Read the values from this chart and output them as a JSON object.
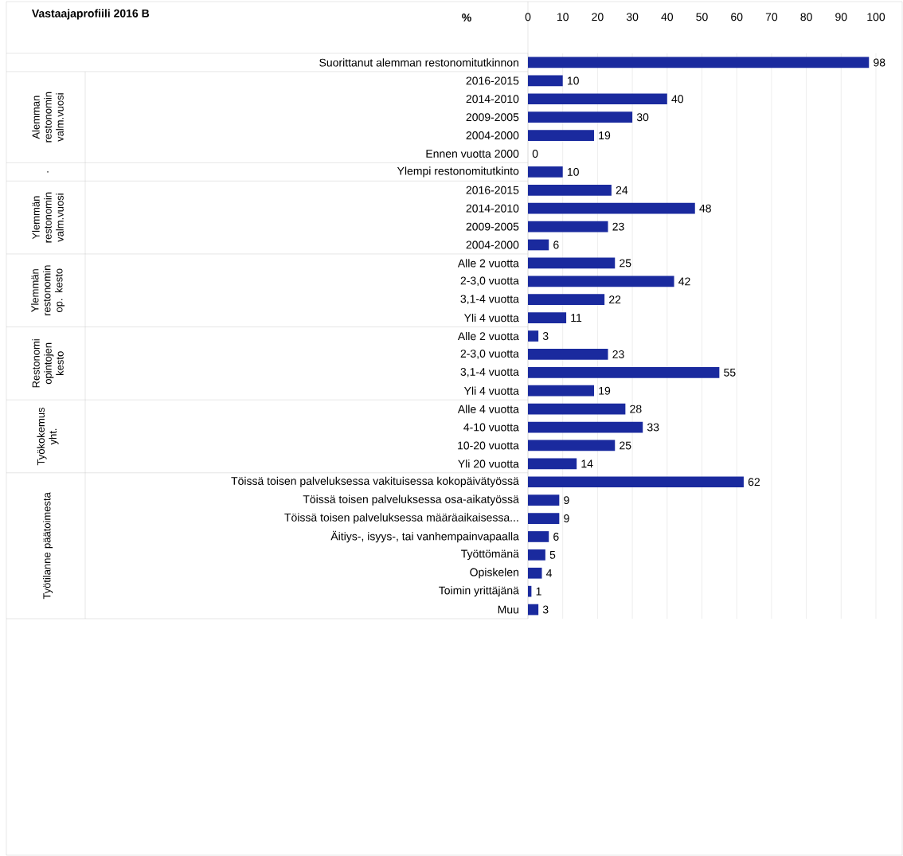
{
  "chart_data": {
    "type": "bar",
    "orientation": "horizontal",
    "title": "Vastaajaprofiili 2016 B",
    "xlabel": "%",
    "categories": [
      "Suorittanut alemman restonomitutkinnon",
      "2016-2015",
      "2014-2010",
      "2009-2005",
      "2004-2000",
      "Ennen vuotta 2000",
      "Ylempi restonomitutkinto",
      "2016-2015",
      "2014-2010",
      "2009-2005",
      "2004-2000",
      "Alle 2 vuotta",
      "2-3,0 vuotta",
      "3,1-4 vuotta",
      "Yli 4 vuotta",
      "Alle 2 vuotta",
      "2-3,0 vuotta",
      "3,1-4 vuotta",
      "Yli 4 vuotta",
      "Alle 4 vuotta",
      "4-10 vuotta",
      "10-20 vuotta",
      "Yli 20 vuotta",
      "Töissä toisen palveluksessa vakituisessa kokopäivätyössä",
      "Töissä toisen palveluksessa osa-aikatyössä",
      "Töissä toisen palveluksessa määräaikaisessa...",
      "Äitiys-, isyys-, tai vanhempainvapaalla",
      "Työttömänä",
      "Opiskelen",
      "Toimin yrittäjänä",
      "Muu"
    ],
    "values": [
      98,
      10,
      40,
      30,
      19,
      0,
      10,
      24,
      48,
      23,
      6,
      25,
      42,
      22,
      11,
      3,
      23,
      55,
      19,
      28,
      33,
      25,
      14,
      62,
      9,
      9,
      6,
      5,
      4,
      1,
      3
    ],
    "color": "#1a2a9e",
    "xlim": [
      0,
      100
    ],
    "xticks": [
      0,
      10,
      20,
      30,
      40,
      50,
      60,
      70,
      80,
      90,
      100
    ],
    "grid": "x",
    "data_labels": true,
    "annotations": [
      "Alemman restonomin valm.vuosi",
      ".",
      "Ylemmän restonomin valm.vuosi",
      "Ylemmän restonomin op. kesto",
      "Restonomi opintojen kesto",
      "Työkokemus yht.",
      "Työtilanne päätoimesta"
    ]
  }
}
